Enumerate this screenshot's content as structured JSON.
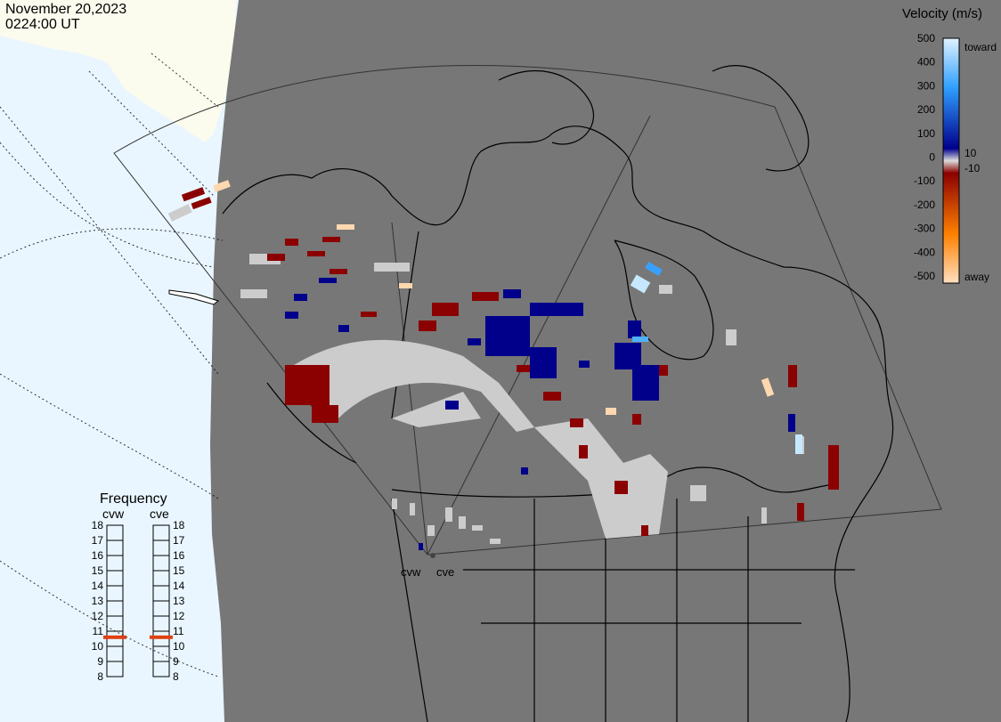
{
  "header": {
    "date": "November 20,2023",
    "time": "0224:00 UT"
  },
  "colors": {
    "ocean": "#e9f6ff",
    "land_outside": "#fbfbee",
    "night_shade": "#777777",
    "ground_scatter": "#cccccc",
    "toward_dark": "#00008b",
    "toward_light": "#c6e8ff",
    "away_dark": "#8b0000",
    "away_light": "#ffd8b0"
  },
  "velocity_scale": {
    "title": "Velocity (m/s)",
    "toward_label": "toward",
    "away_label": "away",
    "ticks": [
      "500",
      "400",
      "300",
      "200",
      "100",
      "0",
      "-100",
      "-200",
      "-300",
      "-400",
      "-500"
    ],
    "inner_ticks": [
      "10",
      "-10"
    ]
  },
  "frequency": {
    "title": "Frequency",
    "radars": [
      {
        "name": "cvw",
        "value": 10.6
      },
      {
        "name": "cve",
        "value": 10.6
      }
    ],
    "ticks": [
      "18",
      "17",
      "16",
      "15",
      "14",
      "13",
      "12",
      "11",
      "10",
      "9",
      "8"
    ]
  },
  "sites": {
    "cvw": "cvw",
    "cve": "cve"
  }
}
